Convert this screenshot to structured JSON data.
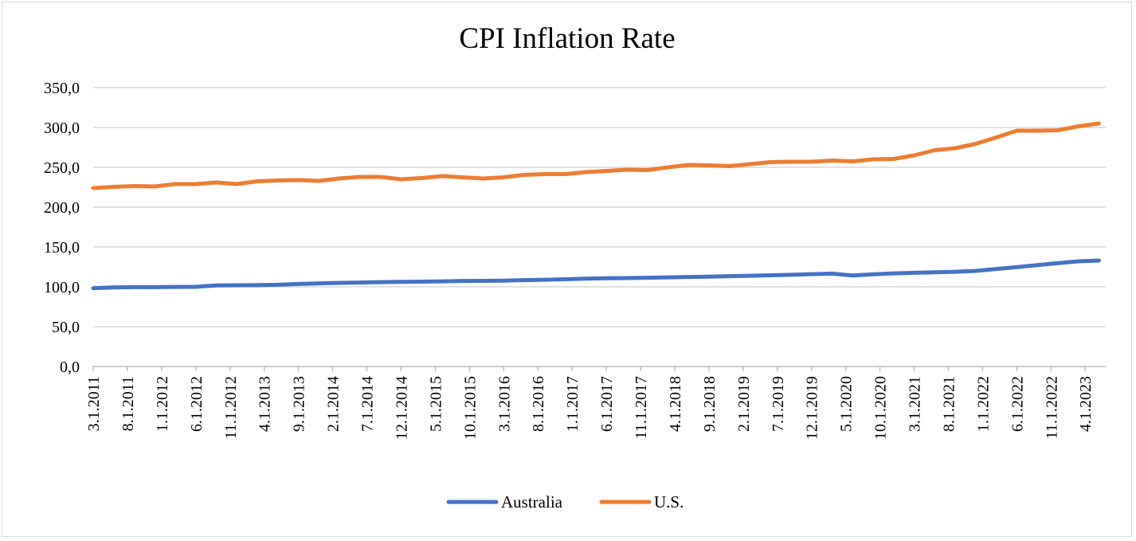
{
  "chart_data": {
    "type": "line",
    "title": "CPI Inflation Rate",
    "xlabel": "",
    "ylabel": "",
    "ylim": [
      0,
      350
    ],
    "yticks": [
      "0,0",
      "50,0",
      "100,0",
      "150,0",
      "200,0",
      "250,0",
      "300,0",
      "350,0"
    ],
    "xlim": [
      "3.1.2011",
      "7.1.2023"
    ],
    "grid": "horizontal",
    "legend_position": "bottom",
    "x_tick_labels": [
      "3.1.2011",
      "8.1.2011",
      "1.1.2012",
      "6.1.2012",
      "11.1.2012",
      "4.1.2013",
      "9.1.2013",
      "2.1.2014",
      "7.1.2014",
      "12.1.2014",
      "5.1.2015",
      "10.1.2015",
      "3.1.2016",
      "8.1.2016",
      "1.1.2017",
      "6.1.2017",
      "11.1.2017",
      "4.1.2018",
      "9.1.2018",
      "2.1.2019",
      "7.1.2019",
      "12.1.2019",
      "5.1.2020",
      "10.1.2020",
      "3.1.2021",
      "8.1.2021",
      "1.1.2022",
      "6.1.2022",
      "11.1.2022",
      "4.1.2023"
    ],
    "x": [
      "3.1.2011",
      "6.1.2011",
      "9.1.2011",
      "12.1.2011",
      "3.1.2012",
      "6.1.2012",
      "9.1.2012",
      "12.1.2012",
      "3.1.2013",
      "6.1.2013",
      "9.1.2013",
      "12.1.2013",
      "3.1.2014",
      "6.1.2014",
      "9.1.2014",
      "12.1.2014",
      "3.1.2015",
      "6.1.2015",
      "9.1.2015",
      "12.1.2015",
      "3.1.2016",
      "6.1.2016",
      "9.1.2016",
      "12.1.2016",
      "3.1.2017",
      "6.1.2017",
      "9.1.2017",
      "12.1.2017",
      "3.1.2018",
      "6.1.2018",
      "9.1.2018",
      "12.1.2018",
      "3.1.2019",
      "6.1.2019",
      "9.1.2019",
      "12.1.2019",
      "3.1.2020",
      "6.1.2020",
      "9.1.2020",
      "12.1.2020",
      "3.1.2021",
      "6.1.2021",
      "9.1.2021",
      "12.1.2021",
      "3.1.2022",
      "6.1.2022",
      "9.1.2022",
      "12.1.2022",
      "3.1.2023",
      "6.1.2023"
    ],
    "series": [
      {
        "name": "Australia",
        "color": "#4472c4",
        "values": [
          98.3,
          99.3,
          99.6,
          99.6,
          99.9,
          100.0,
          101.8,
          102.0,
          102.1,
          102.6,
          103.6,
          104.4,
          105.0,
          105.4,
          105.9,
          106.2,
          106.5,
          106.9,
          107.4,
          107.5,
          107.8,
          108.4,
          108.9,
          109.5,
          110.2,
          110.7,
          111.0,
          111.4,
          111.9,
          112.4,
          112.8,
          113.4,
          113.9,
          114.5,
          115.1,
          115.9,
          116.6,
          114.3,
          115.8,
          116.9,
          117.6,
          118.2,
          118.9,
          120.0,
          122.4,
          124.8,
          127.2,
          129.7,
          132.0,
          133.0
        ]
      },
      {
        "name": "U.S.",
        "color": "#ed7d31",
        "values": [
          224.0,
          225.5,
          226.5,
          226.0,
          229.0,
          229.0,
          231.0,
          229.0,
          232.5,
          233.5,
          234.0,
          233.0,
          236.0,
          238.0,
          238.0,
          235.0,
          236.5,
          239.0,
          237.5,
          236.0,
          237.5,
          240.5,
          241.5,
          241.5,
          244.0,
          245.5,
          247.0,
          246.5,
          250.0,
          253.0,
          252.5,
          251.5,
          254.0,
          256.5,
          257.0,
          257.0,
          258.5,
          257.5,
          260.0,
          260.5,
          265.0,
          271.5,
          274.0,
          279.5,
          287.5,
          296.0,
          296.0,
          296.5,
          301.5,
          305.0
        ]
      }
    ]
  }
}
